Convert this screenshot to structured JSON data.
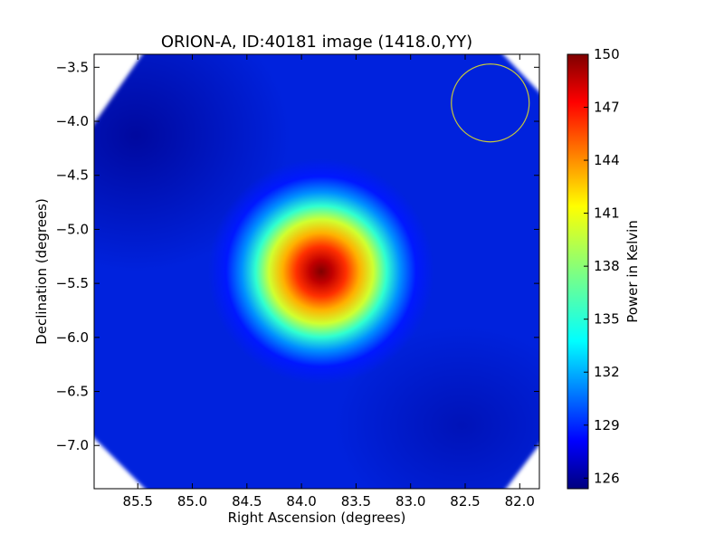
{
  "chart_data": {
    "type": "heatmap",
    "title": "ORION-A, ID:40181 image (1418.0,YY)",
    "xlabel": "Right Ascension (degrees)",
    "ylabel": "Declination (degrees)",
    "xlim": [
      85.9,
      81.82
    ],
    "ylim": [
      -7.4,
      -3.38
    ],
    "x_ticks": [
      "85.5",
      "85.0",
      "84.5",
      "84.0",
      "83.5",
      "83.0",
      "82.5",
      "82.0"
    ],
    "x_tick_values": [
      85.5,
      85.0,
      84.5,
      84.0,
      83.5,
      83.0,
      82.5,
      82.0
    ],
    "y_ticks": [
      "−3.5",
      "−4.0",
      "−4.5",
      "−5.0",
      "−5.5",
      "−6.0",
      "−6.5",
      "−7.0"
    ],
    "y_tick_values": [
      -3.5,
      -4.0,
      -4.5,
      -5.0,
      -5.5,
      -6.0,
      -6.5,
      -7.0
    ],
    "source": {
      "ra": 83.82,
      "dec": -5.39,
      "peak_kelvin": 150
    },
    "background_kelvin": 126,
    "beam_circle": {
      "ra": 82.27,
      "dec": -3.83,
      "radius_deg": 0.36,
      "color": "#c8c83a"
    },
    "colorbar": {
      "label": "Power in Kelvin",
      "range": [
        125.4,
        150
      ],
      "ticks": [
        "126",
        "129",
        "132",
        "135",
        "138",
        "141",
        "144",
        "147",
        "150"
      ],
      "tick_values": [
        126,
        129,
        132,
        135,
        138,
        141,
        144,
        147,
        150
      ],
      "colormap": "jet"
    },
    "grid": false
  }
}
